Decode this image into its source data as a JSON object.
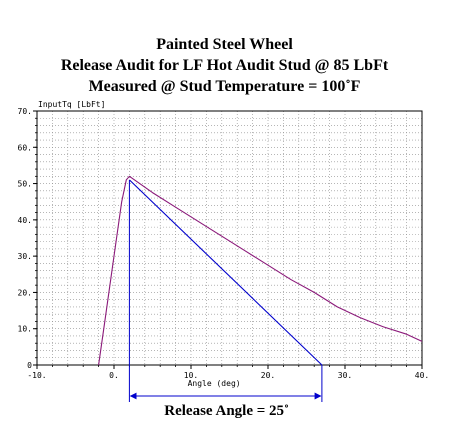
{
  "title_lines": [
    "Painted Steel Wheel",
    "Release Audit for LF Hot Audit Stud @ 85 LbFt",
    "Measured @ Stud Temperature = 100˚F"
  ],
  "chart_data": {
    "type": "line",
    "title": "Painted Steel Wheel / Release Audit for LF Hot Audit Stud @ 85 LbFt / Measured @ Stud Temperature = 100˚F",
    "ylabel": "InputTq [LbFt]",
    "xlabel": "Angle (deg)",
    "xlim": [
      -10,
      40
    ],
    "ylim": [
      0,
      70
    ],
    "x_ticks": [
      -10,
      0,
      10,
      20,
      30,
      40
    ],
    "x_tick_labels": [
      "-10.",
      "0.",
      "10.",
      "20.",
      "30.",
      "40."
    ],
    "y_ticks": [
      0,
      10,
      20,
      30,
      40,
      50,
      60,
      70
    ],
    "y_tick_labels": [
      "0",
      "10.",
      "20.",
      "30.",
      "40.",
      "50.",
      "60.",
      "70."
    ],
    "grid": true,
    "series": [
      {
        "color": "#8b1a7a",
        "x": [
          -2.0,
          -1.2,
          0.0,
          1.0,
          1.6,
          2.0,
          5,
          8,
          11,
          14,
          17,
          20,
          23,
          26,
          29,
          32,
          35,
          38,
          40
        ],
        "y": [
          0,
          12,
          30,
          45,
          51,
          52,
          47.5,
          43.5,
          39.5,
          35.5,
          31.5,
          27.5,
          23.5,
          20,
          16,
          13,
          10.5,
          8.5,
          6.5
        ]
      },
      {
        "color": "#0000cc",
        "x": [
          2.0,
          27.0
        ],
        "y": [
          51,
          0
        ]
      }
    ],
    "annotations": [
      {
        "text": "Release Angle = 25˚",
        "angle_start": 2,
        "angle_end": 27,
        "color": "#0000cc"
      }
    ]
  }
}
